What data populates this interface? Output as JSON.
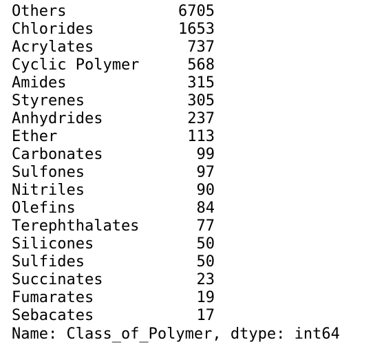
{
  "series_output": {
    "rows": [
      {
        "label": "Others",
        "count": 6705
      },
      {
        "label": "Chlorides",
        "count": 1653
      },
      {
        "label": "Acrylates",
        "count": 737
      },
      {
        "label": "Cyclic Polymer",
        "count": 568
      },
      {
        "label": "Amides",
        "count": 315
      },
      {
        "label": "Styrenes",
        "count": 305
      },
      {
        "label": "Anhydrides",
        "count": 237
      },
      {
        "label": "Ether",
        "count": 113
      },
      {
        "label": "Carbonates",
        "count": 99
      },
      {
        "label": "Sulfones",
        "count": 97
      },
      {
        "label": "Nitriles",
        "count": 90
      },
      {
        "label": "Olefins",
        "count": 84
      },
      {
        "label": "Terephthalates",
        "count": 77
      },
      {
        "label": "Silicones",
        "count": 50
      },
      {
        "label": "Sulfides",
        "count": 50
      },
      {
        "label": "Succinates",
        "count": 23
      },
      {
        "label": "Fumarates",
        "count": 19
      },
      {
        "label": "Sebacates",
        "count": 17
      }
    ],
    "footer": "Name: Class_of_Polymer, dtype: int64"
  }
}
